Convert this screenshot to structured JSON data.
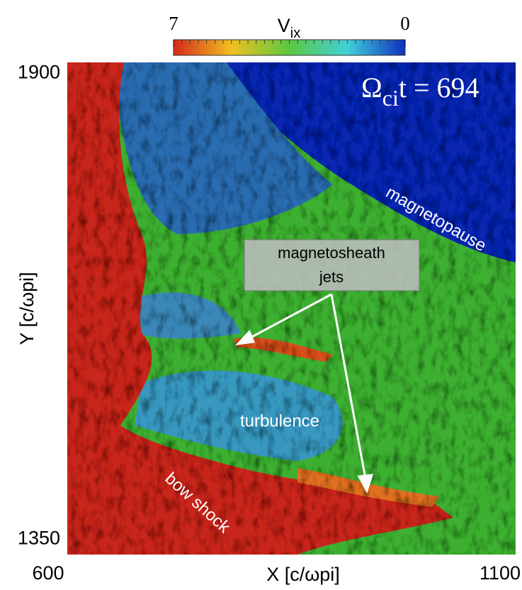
{
  "chart_data": {
    "type": "field",
    "xlabel": "X [c/ωpi]",
    "ylabel": "Y [c/ωpi]",
    "xlim": [
      600,
      1100
    ],
    "ylim": [
      1332,
      1913
    ],
    "xticks": [
      600,
      1100
    ],
    "yticks": [
      1350,
      1900
    ],
    "colorbar": {
      "label": "V",
      "label_sub": "ix",
      "lim": [
        7,
        0
      ],
      "ticks": [
        7,
        0
      ],
      "colors": [
        "#d42a1a",
        "#f0c020",
        "#5cc840",
        "#40d0d8",
        "#1030c0"
      ]
    },
    "time_label": {
      "symbol": "Ω",
      "sub": "ci",
      "text": "t = 694"
    },
    "annotations": [
      {
        "text": "magnetopause"
      },
      {
        "text": "magnetosheath"
      },
      {
        "text": "jets"
      },
      {
        "text": "turbulence"
      },
      {
        "text": "bow shock"
      }
    ]
  }
}
